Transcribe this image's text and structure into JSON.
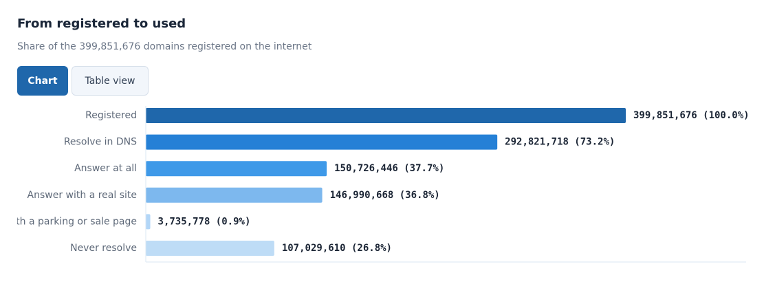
{
  "header": {
    "title": "From registered to used",
    "subtitle": "Share of the 399,851,676 domains registered on the internet"
  },
  "tabs": [
    {
      "label": "Chart",
      "active": true
    },
    {
      "label": "Table view",
      "active": false
    }
  ],
  "colors": {
    "bars": [
      "#1f67ab",
      "#2580d6",
      "#3e99e8",
      "#7db8ee",
      "#b2d6f7",
      "#bedcf6"
    ],
    "axis": "#dbe7f3"
  },
  "chart_data": {
    "type": "bar",
    "orientation": "horizontal",
    "title": "From registered to used",
    "subtitle": "Share of the 399,851,676 domains registered on the internet",
    "categories": [
      "Registered",
      "Resolve in DNS",
      "Answer at all",
      "Answer with a real site",
      "Answer with a parking or sale page",
      "Never resolve"
    ],
    "values": [
      399851676,
      292821718,
      150726446,
      146990668,
      3735778,
      107029610
    ],
    "value_labels": [
      "399,851,676 (100.0%)",
      "292,821,718 (73.2%)",
      "150,726,446 (37.7%)",
      "146,990,668 (36.8%)",
      "3,735,778 (0.9%)",
      "107,029,610 (26.8%)"
    ],
    "xlim": [
      0,
      399851676
    ],
    "grid": false,
    "legend": "none"
  }
}
